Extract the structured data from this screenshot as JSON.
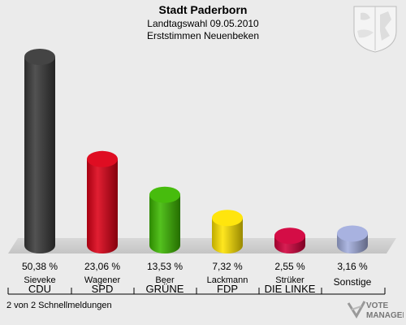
{
  "header": {
    "title": "Stadt Paderborn",
    "subtitle": "Landtagswahl 09.05.2010",
    "subtitle2": "Erststimmen Neuenbeken"
  },
  "footer": {
    "note": "2 von 2 Schnellmeldungen"
  },
  "logo": {
    "line1": "VOTE",
    "line2": "MANAGER"
  },
  "chart_data": {
    "type": "bar",
    "title": "Stadt Paderborn",
    "categories": [
      "CDU",
      "SPD",
      "GRÜNE",
      "FDP",
      "DIE LINKE",
      "Sonstige"
    ],
    "candidates": [
      "Sieveke",
      "Wagener",
      "Beer",
      "Lackmann",
      "Strüker",
      ""
    ],
    "values": [
      50.38,
      23.06,
      13.53,
      7.32,
      2.55,
      3.16
    ],
    "labels": [
      "50,38 %",
      "23,06 %",
      "13,53 %",
      "7,32 %",
      "2,55 %",
      "3,16 %"
    ],
    "colors": [
      "#3a3a3a",
      "#dd0016",
      "#3db800",
      "#ffe400",
      "#d2003c",
      "#a3aede"
    ],
    "ylim": [
      0,
      50.38
    ],
    "grid": false
  }
}
